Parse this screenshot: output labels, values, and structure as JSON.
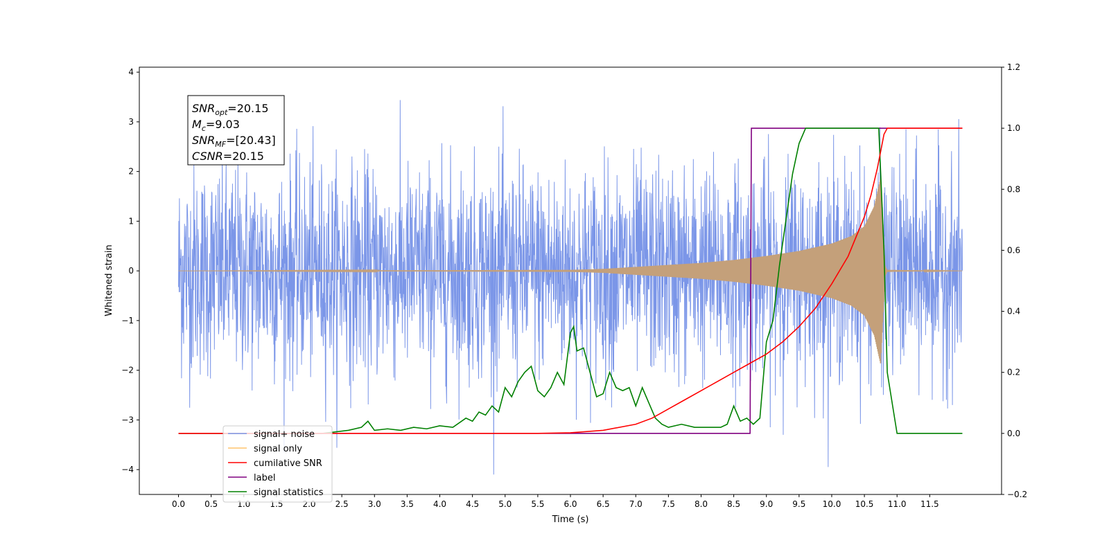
{
  "chart_data": {
    "type": "line",
    "title": "",
    "xlabel": "Time (s)",
    "ylabel": "Whitened strain",
    "ylabel_right": "",
    "xlim": [
      -0.6,
      12.6
    ],
    "ylim": [
      -4.5,
      4.1
    ],
    "ylim_right": [
      -0.2,
      1.2
    ],
    "x_ticks": [
      0.0,
      0.5,
      1.0,
      1.5,
      2.0,
      2.5,
      3.0,
      3.5,
      4.0,
      4.5,
      5.0,
      5.5,
      6.0,
      6.5,
      7.0,
      7.5,
      8.0,
      8.5,
      9.0,
      9.5,
      10.0,
      10.5,
      11.0,
      11.5
    ],
    "x_tick_labels": [
      "0.0",
      "0.5",
      "1.0",
      "1.5",
      "2.0",
      "2.5",
      "3.0",
      "3.5",
      "4.0",
      "4.5",
      "5.0",
      "5.5",
      "6.0",
      "6.5",
      "7.0",
      "7.5",
      "8.0",
      "8.5",
      "9.0",
      "9.5",
      "10.0",
      "10.5",
      "11.0",
      "11.5"
    ],
    "y_ticks": [
      -4,
      -3,
      -2,
      -1,
      0,
      1,
      2,
      3,
      4
    ],
    "y_tick_labels": [
      "−4",
      "−3",
      "−2",
      "−1",
      "0",
      "1",
      "2",
      "3",
      "4"
    ],
    "y_ticks_right": [
      -0.2,
      0.0,
      0.2,
      0.4,
      0.6,
      0.8,
      1.0,
      1.2
    ],
    "y_tick_labels_right": [
      "−0.2",
      "0.0",
      "0.2",
      "0.4",
      "0.6",
      "0.8",
      "1.0",
      "1.2"
    ],
    "grid": false,
    "legend_position": "lower-left",
    "annotation_box": {
      "position": "upper-left",
      "lines": [
        {
          "base": "SNR",
          "sub": "opt",
          "rest": "=20.15"
        },
        {
          "base": "M",
          "sub": "c",
          "rest": "=9.03"
        },
        {
          "base": "SNR",
          "sub": "MF",
          "rest": "=[20.43]"
        },
        {
          "base": "CSNR",
          "sub": "",
          "rest": "=20.15"
        }
      ]
    },
    "noise": {
      "name": "signal+ noise",
      "color": "#7b96e8",
      "x_start": 0.0,
      "x_end": 12.0,
      "std": 1.05,
      "min": -4.1,
      "max": 3.7
    },
    "series": [
      {
        "name": "signal only",
        "axis": "left",
        "color": "#c4a07a",
        "legend_color": "#ffc36b",
        "envelope_x": [
          0.0,
          6.0,
          6.5,
          7.0,
          7.5,
          8.0,
          8.5,
          9.0,
          9.5,
          10.0,
          10.3,
          10.5,
          10.65,
          10.75,
          10.82,
          10.85,
          12.0
        ],
        "envelope_y": [
          0.0,
          0.02,
          0.04,
          0.08,
          0.12,
          0.16,
          0.22,
          0.3,
          0.4,
          0.55,
          0.7,
          0.9,
          1.3,
          1.9,
          0.1,
          0.02,
          0.0
        ]
      },
      {
        "name": "cumilative SNR",
        "axis": "right",
        "color": "#ff0000",
        "x": [
          0.0,
          5.5,
          6.0,
          6.5,
          7.0,
          7.25,
          7.5,
          7.75,
          8.0,
          8.25,
          8.5,
          8.75,
          9.0,
          9.25,
          9.5,
          9.75,
          10.0,
          10.25,
          10.5,
          10.6,
          10.7,
          10.8,
          10.85,
          12.0
        ],
        "y": [
          0.0,
          0.0,
          0.002,
          0.01,
          0.03,
          0.05,
          0.08,
          0.11,
          0.14,
          0.17,
          0.2,
          0.23,
          0.26,
          0.3,
          0.35,
          0.41,
          0.49,
          0.58,
          0.71,
          0.78,
          0.87,
          0.98,
          1.0,
          1.0
        ]
      },
      {
        "name": "label",
        "axis": "right",
        "color": "#800080",
        "x": [
          0.0,
          8.75,
          8.77,
          10.75,
          10.77,
          12.0
        ],
        "y": [
          0.0,
          0.0,
          1.0,
          1.0,
          1.0,
          1.0
        ]
      },
      {
        "name": "signal statistics",
        "axis": "right",
        "color": "#008000",
        "x": [
          0.0,
          2.2,
          2.4,
          2.6,
          2.8,
          2.9,
          3.0,
          3.2,
          3.4,
          3.6,
          3.8,
          4.0,
          4.2,
          4.4,
          4.5,
          4.6,
          4.7,
          4.8,
          4.9,
          5.0,
          5.1,
          5.2,
          5.3,
          5.4,
          5.5,
          5.6,
          5.7,
          5.8,
          5.9,
          6.0,
          6.05,
          6.1,
          6.2,
          6.3,
          6.4,
          6.5,
          6.6,
          6.7,
          6.8,
          6.9,
          7.0,
          7.1,
          7.2,
          7.3,
          7.4,
          7.5,
          7.7,
          7.9,
          8.1,
          8.3,
          8.4,
          8.5,
          8.6,
          8.7,
          8.8,
          8.9,
          9.0,
          9.1,
          9.2,
          9.3,
          9.4,
          9.5,
          9.6,
          9.8,
          10.0,
          10.2,
          10.5,
          10.72,
          10.8,
          10.85,
          11.0,
          12.0
        ],
        "y": [
          0.0,
          0.0,
          0.005,
          0.01,
          0.02,
          0.04,
          0.01,
          0.015,
          0.01,
          0.02,
          0.015,
          0.025,
          0.02,
          0.05,
          0.04,
          0.07,
          0.06,
          0.09,
          0.07,
          0.15,
          0.12,
          0.17,
          0.2,
          0.22,
          0.14,
          0.12,
          0.15,
          0.2,
          0.16,
          0.33,
          0.35,
          0.27,
          0.28,
          0.2,
          0.12,
          0.13,
          0.2,
          0.15,
          0.14,
          0.15,
          0.09,
          0.15,
          0.1,
          0.05,
          0.03,
          0.02,
          0.03,
          0.02,
          0.02,
          0.02,
          0.03,
          0.09,
          0.04,
          0.05,
          0.03,
          0.05,
          0.3,
          0.37,
          0.55,
          0.7,
          0.85,
          0.95,
          1.0,
          1.0,
          1.0,
          1.0,
          1.0,
          1.0,
          0.6,
          0.2,
          0.0,
          0.0
        ]
      }
    ]
  }
}
